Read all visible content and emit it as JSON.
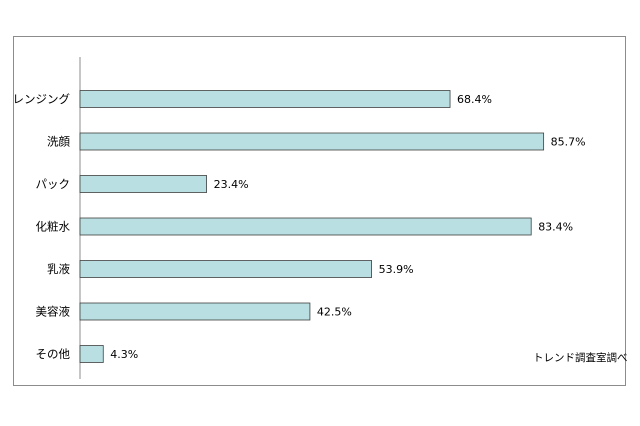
{
  "chart_data": {
    "type": "bar",
    "orientation": "horizontal",
    "title": "",
    "xlabel": "",
    "ylabel": "",
    "categories": [
      "クレンジング",
      "洗顔",
      "パック",
      "化粧水",
      "乳液",
      "美容液",
      "その他"
    ],
    "values": [
      68.4,
      85.7,
      23.4,
      83.4,
      53.9,
      42.5,
      4.3
    ],
    "value_labels": [
      "68.4%",
      "85.7%",
      "23.4%",
      "83.4%",
      "53.9%",
      "42.5%",
      "4.3%"
    ],
    "xlim": [
      0,
      100
    ],
    "grid": false,
    "legend": "none",
    "bar_color": "#b9dfe2",
    "bar_edge_color": "#3f3f3f",
    "source_note": "トレンド調査室調べ"
  }
}
